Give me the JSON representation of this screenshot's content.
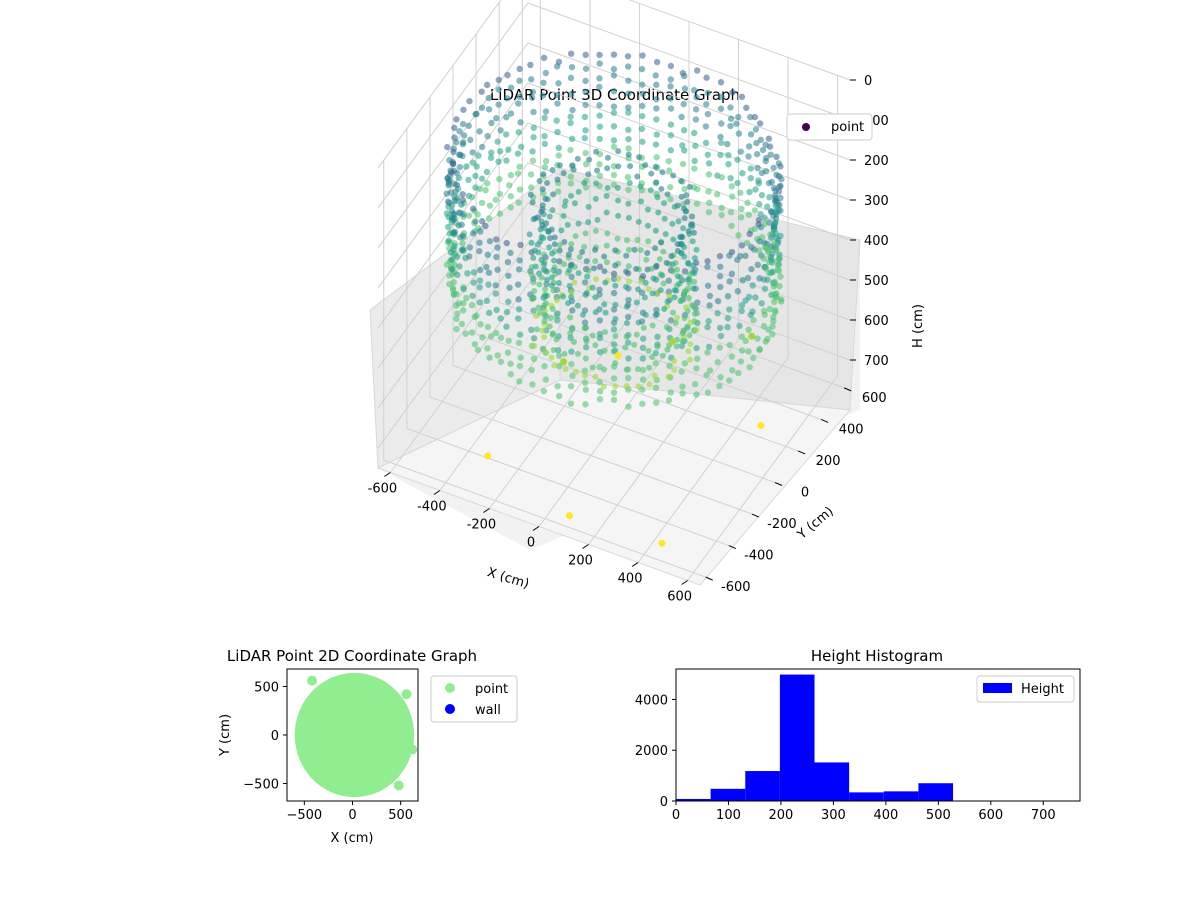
{
  "chart_data": [
    {
      "type": "scatter",
      "title": "LiDAR Point 3D Coordinate Graph",
      "xlabel": "X (cm)",
      "ylabel": "Y (cm)",
      "zlabel": "H (cm)",
      "xlim": [
        -650,
        650
      ],
      "ylim": [
        -650,
        650
      ],
      "zlim": [
        750,
        0
      ],
      "x_ticks": [
        -600,
        -400,
        -200,
        0,
        200,
        400,
        600
      ],
      "y_ticks": [
        -600,
        -400,
        -200,
        0,
        200,
        400,
        600
      ],
      "z_ticks": [
        0,
        100,
        200,
        300,
        400,
        500,
        600,
        700
      ],
      "z_axis_inverted": true,
      "colormap": "viridis",
      "grid": true,
      "legend": {
        "placement": "upper right",
        "entries": [
          {
            "name": "point",
            "color": "#440154"
          }
        ]
      },
      "series": [
        {
          "name": "point",
          "description_points": "ring of points at radius ~600 cm, height mostly 100-450 cm, plus inner ring at radius ~300 cm and scattered floor points",
          "sample_points": [
            {
              "x": -300,
              "y": -450,
              "h": 720
            },
            {
              "x": 100,
              "y": -600,
              "h": 720
            },
            {
              "x": 450,
              "y": -550,
              "h": 730
            },
            {
              "x": 500,
              "y": 200,
              "h": 720
            },
            {
              "x": -100,
              "y": 250,
              "h": 700
            },
            {
              "x": 50,
              "y": 400,
              "h": 690
            },
            {
              "x": -250,
              "y": 100,
              "h": 690
            },
            {
              "x": 300,
              "y": 550,
              "h": 680
            }
          ]
        }
      ]
    },
    {
      "type": "scatter",
      "title": "LiDAR Point 2D Coordinate Graph",
      "xlabel": "X (cm)",
      "ylabel": "Y (cm)",
      "xlim": [
        -680,
        680
      ],
      "ylim": [
        -680,
        680
      ],
      "x_ticks": [
        -500,
        0,
        500
      ],
      "y_ticks": [
        -500,
        0,
        500
      ],
      "legend": {
        "placement": "outside upper right",
        "entries": [
          {
            "name": "point",
            "color": "#90ee90"
          },
          {
            "name": "wall",
            "color": "#0000ff"
          }
        ]
      },
      "series": [
        {
          "name": "point",
          "color": "#90ee90",
          "shape": "filled disc of radius ~620 cm centered near (0,0)"
        },
        {
          "name": "wall",
          "color": "#0000ff",
          "values": []
        }
      ]
    },
    {
      "type": "bar",
      "title": "Height Histogram",
      "xlabel": "",
      "ylabel": "",
      "xlim": [
        0,
        770
      ],
      "ylim": [
        0,
        5200
      ],
      "x_ticks": [
        0,
        100,
        200,
        300,
        400,
        500,
        600,
        700
      ],
      "y_ticks": [
        0,
        2000,
        4000
      ],
      "color": "#0000ff",
      "legend": {
        "placement": "upper right",
        "entries": [
          {
            "name": "Height",
            "color": "#0000ff"
          }
        ]
      },
      "bins": [
        {
          "start": 0,
          "end": 66,
          "count": 80
        },
        {
          "start": 66,
          "end": 132,
          "count": 480
        },
        {
          "start": 132,
          "end": 198,
          "count": 1180
        },
        {
          "start": 198,
          "end": 264,
          "count": 4980
        },
        {
          "start": 264,
          "end": 330,
          "count": 1520
        },
        {
          "start": 330,
          "end": 396,
          "count": 340
        },
        {
          "start": 396,
          "end": 462,
          "count": 380
        },
        {
          "start": 462,
          "end": 528,
          "count": 700
        },
        {
          "start": 528,
          "end": 594,
          "count": 20
        },
        {
          "start": 594,
          "end": 660,
          "count": 10
        },
        {
          "start": 660,
          "end": 726,
          "count": 5
        },
        {
          "start": 726,
          "end": 770,
          "count": 5
        }
      ]
    }
  ]
}
